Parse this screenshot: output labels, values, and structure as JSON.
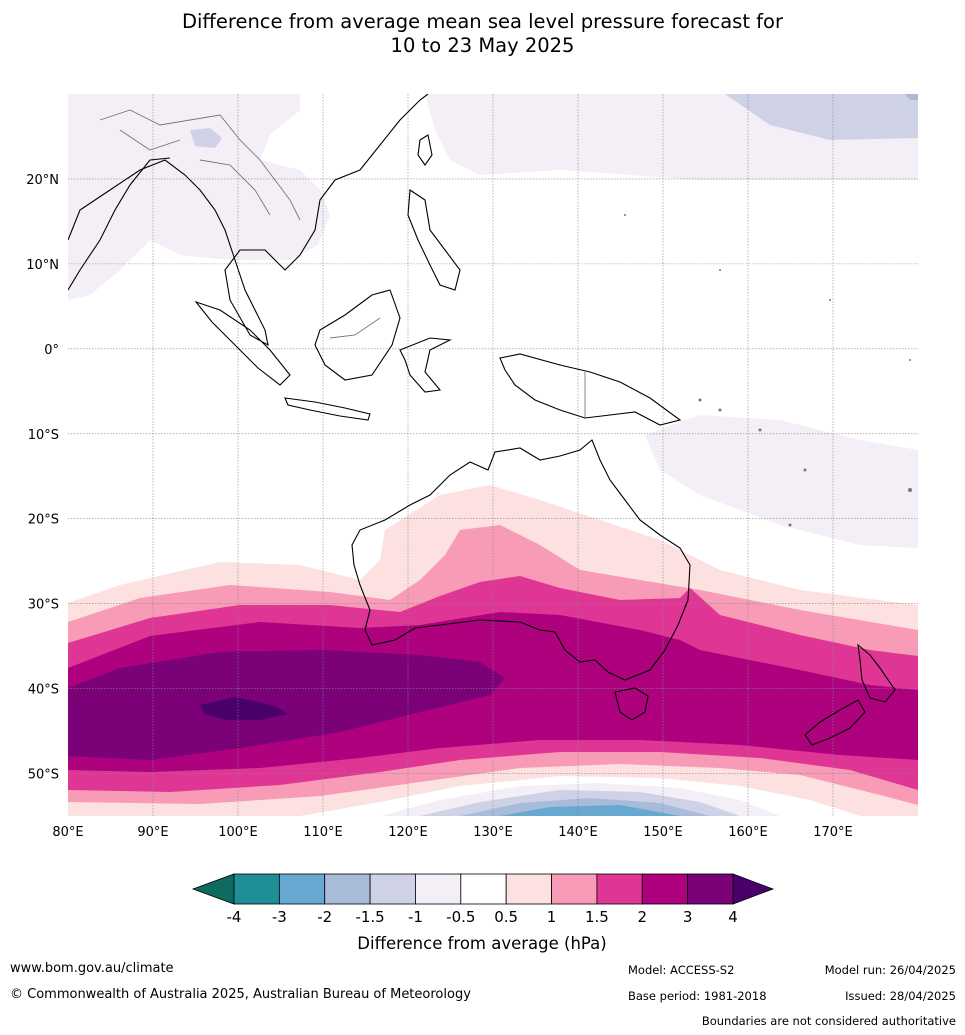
{
  "title": {
    "line1": "Difference from average mean sea level pressure forecast for",
    "line2": "10 to 23 May 2025"
  },
  "map": {
    "lon_labels": [
      "80°E",
      "90°E",
      "100°E",
      "110°E",
      "120°E",
      "130°E",
      "140°E",
      "150°E",
      "160°E",
      "170°E"
    ],
    "lat_labels": [
      "20°N",
      "10°N",
      "0°",
      "10°S",
      "20°S",
      "30°S",
      "40°S",
      "50°S"
    ],
    "lon_range": [
      80,
      180
    ],
    "lat_range": [
      -55,
      30
    ],
    "gridlines": true
  },
  "colorbar": {
    "tick_labels": [
      "-4",
      "-3",
      "-2",
      "-1.5",
      "-1",
      "-0.5",
      "0.5",
      "1",
      "1.5",
      "2",
      "3",
      "4"
    ],
    "label": "Difference from average (hPa)",
    "colors": {
      "below_min": "#0d6b60",
      "-4_-3": "#1f8f97",
      "-3_-2": "#66a8cf",
      "-2_-1.5": "#a8bcd9",
      "-1.5_-1": "#cfd1e6",
      "-1_-0.5": "#f4eef6",
      "-0.5_0.5": "#ffffff",
      "0.5_1": "#fde0e0",
      "1_1.5": "#f79bb6",
      "1.5_2": "#df3696",
      "2_3": "#ae017e",
      "3_4": "#7a0177",
      "above_max": "#49006a"
    }
  },
  "footer": {
    "website": "www.bom.gov.au/climate",
    "copyright": "© Commonwealth of Australia 2025, Australian Bureau of Meteorology",
    "model": "Model: ACCESS-S2",
    "base_period": "Base period: 1981-2018",
    "model_run": "Model run: 26/04/2025",
    "issued": "Issued: 28/04/2025",
    "disclaimer": "Boundaries are not considered authoritative"
  }
}
